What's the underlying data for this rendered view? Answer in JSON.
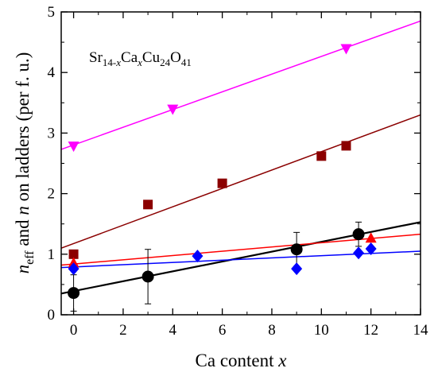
{
  "chart_data": {
    "type": "scatter",
    "xlabel_prefix": "Ca content ",
    "xlabel_var": "x",
    "ylabel": {
      "sym": "n",
      "sub": "eff",
      "mid": " and ",
      "sym2": "n",
      "rest": " on ladders (per f. u.)"
    },
    "annotation": {
      "a": "Sr",
      "b": "14-",
      "c": "x",
      "d": "Ca",
      "e": "x",
      "f": "Cu",
      "g": "24",
      "h": "O",
      "i": "41"
    },
    "xlim": [
      -0.5,
      14
    ],
    "ylim": [
      0,
      5
    ],
    "xticks": [
      0,
      2,
      4,
      6,
      8,
      10,
      12,
      14
    ],
    "yticks": [
      0,
      1,
      2,
      3,
      4,
      5
    ],
    "xtick_labels": [
      "0",
      "2",
      "4",
      "6",
      "8",
      "10",
      "12",
      "14"
    ],
    "ytick_labels": [
      "0",
      "1",
      "2",
      "3",
      "4",
      "5"
    ],
    "grid": false,
    "series": [
      {
        "marker": "triangle-down",
        "color": "#ff00ff",
        "points": [
          [
            0,
            2.78
          ],
          [
            4,
            3.39
          ],
          [
            11,
            4.39
          ]
        ],
        "fit": [
          [
            -0.5,
            2.73
          ],
          [
            14,
            4.85
          ]
        ]
      },
      {
        "marker": "square",
        "color": "#8b0000",
        "points": [
          [
            0,
            1.0
          ],
          [
            3,
            1.82
          ],
          [
            6,
            2.17
          ],
          [
            10,
            2.62
          ],
          [
            11,
            2.79
          ]
        ],
        "fit": [
          [
            -0.5,
            1.1
          ],
          [
            14,
            3.3
          ]
        ]
      },
      {
        "marker": "circle",
        "color": "#000000",
        "points": [
          [
            0,
            0.36
          ],
          [
            3,
            0.63
          ],
          [
            9,
            1.08
          ],
          [
            11.5,
            1.33
          ]
        ],
        "errors": [
          0.3,
          0.45,
          0.28,
          0.2
        ],
        "fit": [
          [
            -0.5,
            0.35
          ],
          [
            14,
            1.53
          ]
        ]
      },
      {
        "marker": "triangle-up",
        "color": "#ff0000",
        "points": [
          [
            0,
            0.86
          ],
          [
            12,
            1.27
          ]
        ],
        "fit": [
          [
            -0.5,
            0.82
          ],
          [
            14,
            1.33
          ]
        ]
      },
      {
        "marker": "diamond",
        "color": "#0000ff",
        "points": [
          [
            0,
            0.76
          ],
          [
            5,
            0.97
          ],
          [
            9,
            0.76
          ],
          [
            11.5,
            1.02
          ],
          [
            12,
            1.09
          ]
        ],
        "fit": [
          [
            -0.5,
            0.78
          ],
          [
            14,
            1.05
          ]
        ]
      }
    ]
  }
}
